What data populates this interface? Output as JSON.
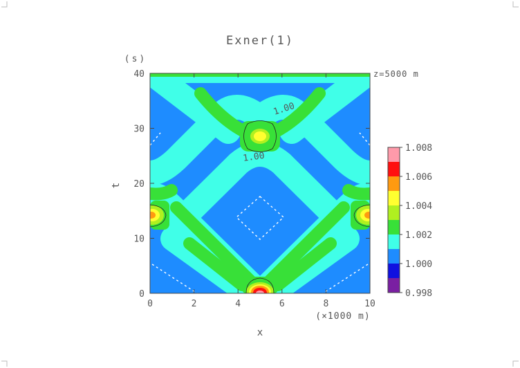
{
  "chart_data": {
    "type": "heatmap",
    "title": "Exner(1)",
    "xlabel": "x",
    "xunit": "(×1000 m)",
    "ylabel": "t",
    "yunit": "(s)",
    "annotation": "z=5000 m",
    "xlim": [
      0,
      10
    ],
    "ylim": [
      0,
      40
    ],
    "xticks": [
      "0",
      "2",
      "4",
      "6",
      "8",
      "10"
    ],
    "yticks": [
      "0",
      "10",
      "20",
      "30",
      "40"
    ],
    "contour_labels": [
      "1.00",
      "1.00"
    ],
    "colorbar": {
      "levels": [
        0.998,
        1.0,
        1.002,
        1.004,
        1.006,
        1.008
      ],
      "tick_labels": [
        "0.998",
        "1.000",
        "1.002",
        "1.004",
        "1.006",
        "1.008"
      ],
      "colors": [
        "#7a1fa2",
        "#1010e0",
        "#1e8cff",
        "#40ffe8",
        "#38e038",
        "#b0f020",
        "#ffff30",
        "#ff9a10",
        "#ff1010",
        "#ff9aaa"
      ]
    },
    "grid": false
  }
}
